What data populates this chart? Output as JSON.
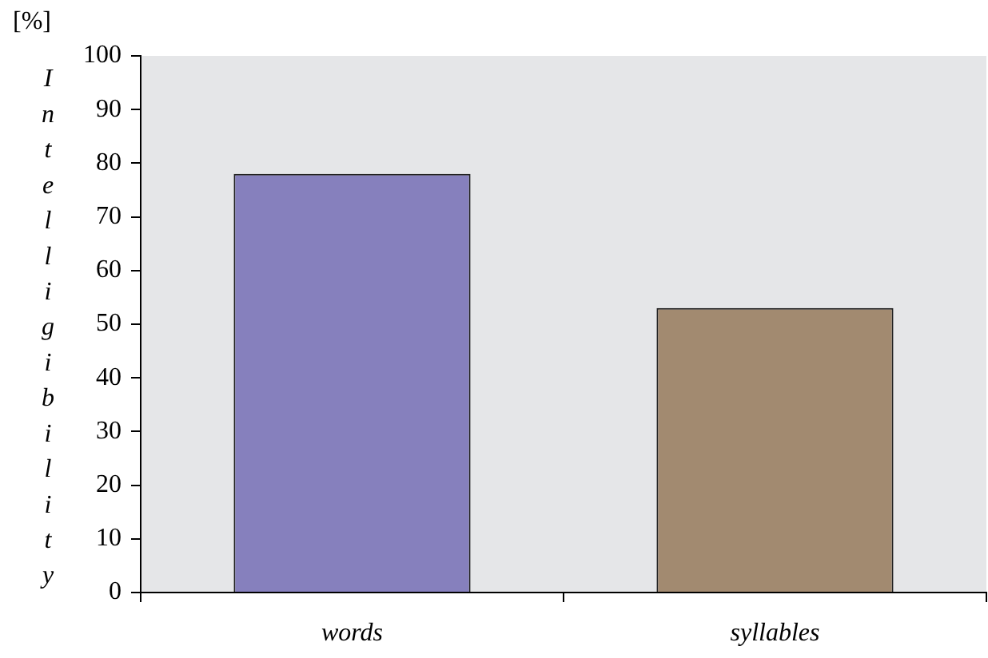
{
  "chart_data": {
    "type": "bar",
    "ylabel": "Intelligibility",
    "annotations": [
      "[%]"
    ],
    "categories": [
      "words",
      "syllables"
    ],
    "values": [
      78,
      53
    ],
    "colors": [
      "#8680bd",
      "#a28a70"
    ],
    "ylim": [
      0,
      100
    ],
    "yticks": [
      0,
      10,
      20,
      30,
      40,
      50,
      60,
      70,
      80,
      90,
      100
    ],
    "grid": false,
    "legend": false
  }
}
